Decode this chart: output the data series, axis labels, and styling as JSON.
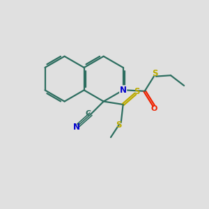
{
  "bg_color": "#e0e0e0",
  "bond_color": "#2d6e60",
  "n_color": "#0000cc",
  "o_color": "#ee2200",
  "s_color": "#bbaa00",
  "figsize": [
    3.0,
    3.0
  ],
  "dpi": 100,
  "xlim": [
    0,
    10
  ],
  "ylim": [
    0,
    10
  ]
}
